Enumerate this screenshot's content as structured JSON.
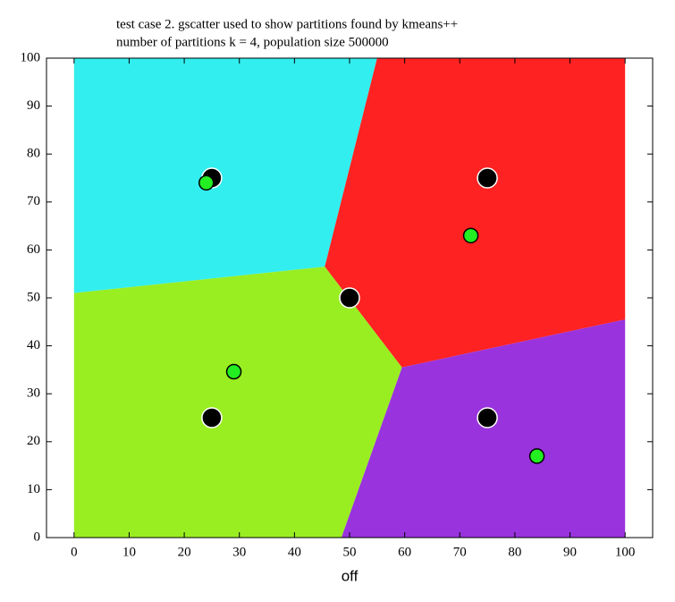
{
  "chart_data": {
    "type": "scatter",
    "title": [
      "test case 2. gscatter used to show partitions found by kmeans++",
      "number of partitions k = 4, population size 500000"
    ],
    "x_label": "off",
    "xlim": [
      -5,
      105
    ],
    "ylim": [
      0,
      100
    ],
    "xticks": [
      0,
      10,
      20,
      30,
      40,
      50,
      60,
      70,
      80,
      90,
      100
    ],
    "yticks": [
      0,
      10,
      20,
      30,
      40,
      50,
      60,
      70,
      80,
      90,
      100
    ],
    "regions": [
      {
        "color": "#33eeee",
        "x": [
          0,
          45.5,
          55,
          0
        ],
        "y": [
          51,
          56.5,
          100,
          100
        ]
      },
      {
        "color": "#ff2222",
        "x": [
          45.5,
          55,
          100,
          100,
          59.5
        ],
        "y": [
          56.5,
          100,
          100,
          45.5,
          35.5
        ]
      },
      {
        "color": "#9933dd",
        "x": [
          59.5,
          100,
          100,
          48.5
        ],
        "y": [
          35.5,
          45.5,
          0,
          0
        ]
      },
      {
        "color": "#99ee22",
        "x": [
          0,
          48.5,
          59.5,
          45.5,
          0
        ],
        "y": [
          0,
          0,
          35.5,
          56.5,
          51
        ]
      }
    ],
    "series": [
      {
        "color": "#000000",
        "edgecolor": "#ffffff",
        "x": [
          25,
          75,
          50,
          25,
          75
        ],
        "values": [
          75,
          75,
          50,
          25,
          25
        ]
      },
      {
        "color": "#22ee22",
        "edgecolor": "#000000",
        "x": [
          24,
          72,
          29,
          84
        ],
        "values": [
          74,
          63,
          34.6,
          17
        ]
      }
    ]
  }
}
